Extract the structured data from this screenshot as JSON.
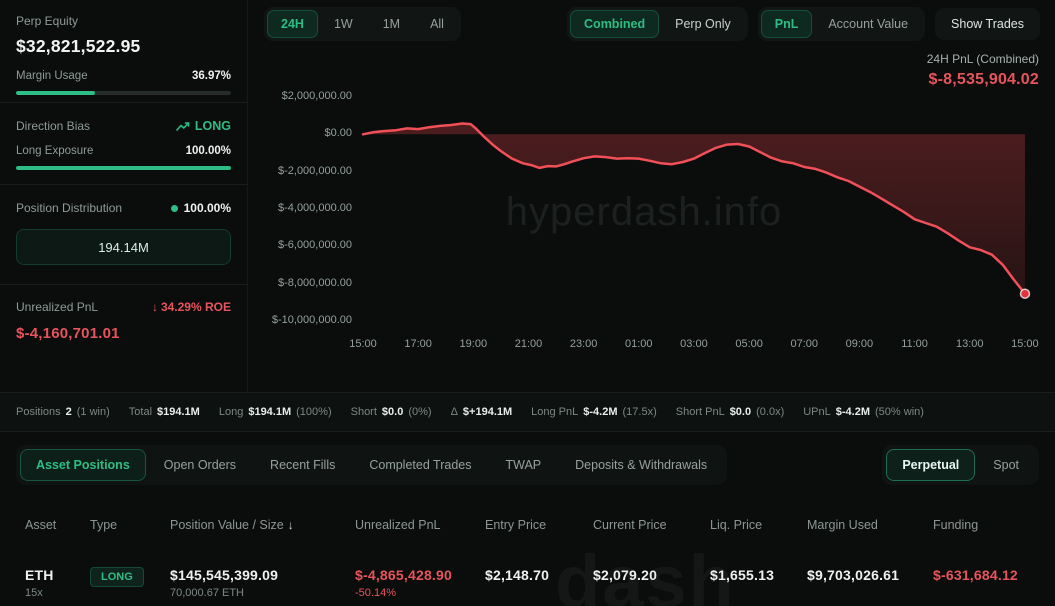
{
  "colors": {
    "green": "#2ebd85",
    "red": "#e8545c",
    "line_red": "#f25058",
    "background": "#0a0d0c"
  },
  "sidebar": {
    "perp_equity_label": "Perp Equity",
    "perp_equity_value": "$32,821,522.95",
    "margin_usage_label": "Margin Usage",
    "margin_usage_value": "36.97%",
    "margin_usage_pct": 36.97,
    "direction_bias_label": "Direction Bias",
    "direction_bias_value": "LONG",
    "long_exposure_label": "Long Exposure",
    "long_exposure_value": "100.00%",
    "long_exposure_pct": 100,
    "position_distribution_label": "Position Distribution",
    "position_distribution_value": "100.00%",
    "position_size_button": "194.14M",
    "unrealized_pnl_label": "Unrealized PnL",
    "roe_arrow": "↓",
    "roe_change": "34.29% ROE",
    "unrealized_pnl_value": "$-4,160,701.01"
  },
  "toolbar": {
    "time_tabs": [
      {
        "label": "24H",
        "selected": true
      },
      {
        "label": "1W",
        "selected": false
      },
      {
        "label": "1M",
        "selected": false
      },
      {
        "label": "All",
        "selected": false
      }
    ],
    "mode_tabs": [
      {
        "label": "Combined",
        "selected": true
      },
      {
        "label": "Perp Only",
        "selected": false
      }
    ],
    "metric_tabs": [
      {
        "label": "PnL",
        "selected": true
      },
      {
        "label": "Account Value",
        "selected": false
      }
    ],
    "show_trades_label": "Show Trades",
    "pnl_summary_label": "24H PnL (Combined)",
    "pnl_summary_value": "$-8,535,904.02"
  },
  "chart_data": {
    "type": "area",
    "title": "24H PnL (Combined)",
    "watermark": "hyperdash.info",
    "legend": "none",
    "grid": false,
    "ylim": [
      -10000000,
      2000000
    ],
    "y_ticks": [
      2000000,
      0,
      -2000000,
      -4000000,
      -6000000,
      -8000000,
      -10000000
    ],
    "y_tick_labels": [
      "$2,000,000.00",
      "$0.00",
      "$-2,000,000.00",
      "$-4,000,000.00",
      "$-6,000,000.00",
      "$-8,000,000.00",
      "$-10,000,000.00"
    ],
    "x_tick_labels": [
      "15:00",
      "17:00",
      "19:00",
      "21:00",
      "23:00",
      "01:00",
      "03:00",
      "05:00",
      "07:00",
      "09:00",
      "11:00",
      "13:00",
      "15:00"
    ],
    "x_hours_span": 24,
    "last_value": -8535904.02,
    "series": [
      {
        "name": "24H PnL",
        "color": "#f25058",
        "points_musd": [
          [
            0,
            0
          ],
          [
            0.4,
            0.12
          ],
          [
            0.8,
            0.18
          ],
          [
            1.2,
            0.22
          ],
          [
            1.6,
            0.32
          ],
          [
            2,
            0.28
          ],
          [
            2.4,
            0.38
          ],
          [
            2.8,
            0.45
          ],
          [
            3.2,
            0.5
          ],
          [
            3.6,
            0.58
          ],
          [
            3.9,
            0.55
          ],
          [
            4.1,
            0.3
          ],
          [
            4.4,
            -0.15
          ],
          [
            4.7,
            -0.55
          ],
          [
            5,
            -0.9
          ],
          [
            5.4,
            -1.3
          ],
          [
            5.8,
            -1.55
          ],
          [
            6.1,
            -1.65
          ],
          [
            6.4,
            -1.8
          ],
          [
            6.7,
            -1.7
          ],
          [
            7,
            -1.72
          ],
          [
            7.3,
            -1.6
          ],
          [
            7.6,
            -1.45
          ],
          [
            8,
            -1.28
          ],
          [
            8.4,
            -1.18
          ],
          [
            8.8,
            -1.22
          ],
          [
            9.2,
            -1.3
          ],
          [
            9.6,
            -1.28
          ],
          [
            10,
            -1.3
          ],
          [
            10.4,
            -1.42
          ],
          [
            10.8,
            -1.55
          ],
          [
            11.2,
            -1.6
          ],
          [
            11.6,
            -1.48
          ],
          [
            12,
            -1.3
          ],
          [
            12.4,
            -1
          ],
          [
            12.8,
            -0.72
          ],
          [
            13.2,
            -0.55
          ],
          [
            13.6,
            -0.52
          ],
          [
            14,
            -0.65
          ],
          [
            14.4,
            -0.95
          ],
          [
            14.8,
            -1.25
          ],
          [
            15.2,
            -1.45
          ],
          [
            15.6,
            -1.55
          ],
          [
            16,
            -1.75
          ],
          [
            16.4,
            -1.85
          ],
          [
            16.8,
            -2.05
          ],
          [
            17.2,
            -2.3
          ],
          [
            17.6,
            -2.5
          ],
          [
            18,
            -2.8
          ],
          [
            18.4,
            -3.1
          ],
          [
            18.8,
            -3.45
          ],
          [
            19.2,
            -3.8
          ],
          [
            19.6,
            -4.15
          ],
          [
            20,
            -4.55
          ],
          [
            20.4,
            -4.75
          ],
          [
            20.8,
            -4.95
          ],
          [
            21.2,
            -5.3
          ],
          [
            21.6,
            -5.7
          ],
          [
            22,
            -6.05
          ],
          [
            22.4,
            -6.2
          ],
          [
            22.8,
            -6.45
          ],
          [
            23.2,
            -7
          ],
          [
            23.6,
            -7.8
          ],
          [
            24,
            -8.536
          ]
        ]
      }
    ]
  },
  "stats": {
    "segments": [
      {
        "label": "Positions",
        "value": "2",
        "extra": "(1 win)",
        "tone": "white"
      },
      {
        "label": "Total",
        "value": "$194.1M",
        "extra": "",
        "tone": "white"
      },
      {
        "label": "Long",
        "value": "$194.1M",
        "extra": "(100%)",
        "tone": "white"
      },
      {
        "label": "Short",
        "value": "$0.0",
        "extra": "(0%)",
        "tone": "white"
      },
      {
        "label": "Δ",
        "value": "$+194.1M",
        "extra": "",
        "tone": "green"
      },
      {
        "label": "Long PnL",
        "value": "$-4.2M",
        "extra": "(17.5x)",
        "tone": "red"
      },
      {
        "label": "Short PnL",
        "value": "$0.0",
        "extra": "(0.0x)",
        "tone": "green"
      },
      {
        "label": "UPnL",
        "value": "$-4.2M",
        "extra": "(50% win)",
        "tone": "red"
      }
    ]
  },
  "tabs": {
    "main": [
      {
        "label": "Asset Positions",
        "selected": true
      },
      {
        "label": "Open Orders",
        "selected": false
      },
      {
        "label": "Recent Fills",
        "selected": false
      },
      {
        "label": "Completed Trades",
        "selected": false
      },
      {
        "label": "TWAP",
        "selected": false
      },
      {
        "label": "Deposits & Withdrawals",
        "selected": false
      }
    ],
    "right": [
      {
        "label": "Perpetual",
        "selected": true
      },
      {
        "label": "Spot",
        "selected": false
      }
    ]
  },
  "table": {
    "headers": [
      "Asset",
      "Type",
      "Position Value / Size",
      "Unrealized PnL",
      "Entry Price",
      "Current Price",
      "Liq. Price",
      "Margin Used",
      "Funding"
    ],
    "sort_icon": "↓",
    "rows": [
      {
        "asset": "ETH",
        "leverage": "15x",
        "type": "LONG",
        "position_value": "$145,545,399.09",
        "position_size": "70,000.67 ETH",
        "unrealized_pnl": "$-4,865,428.90",
        "unrealized_pnl_pct": "-50.14%",
        "entry_price": "$2,148.70",
        "current_price": "$2,079.20",
        "liq_price": "$1,655.13",
        "margin_used": "$9,703,026.61",
        "funding": "$-631,684.12"
      }
    ]
  },
  "watermarks": {
    "chart": "hyperdash.info",
    "table": "dash"
  }
}
